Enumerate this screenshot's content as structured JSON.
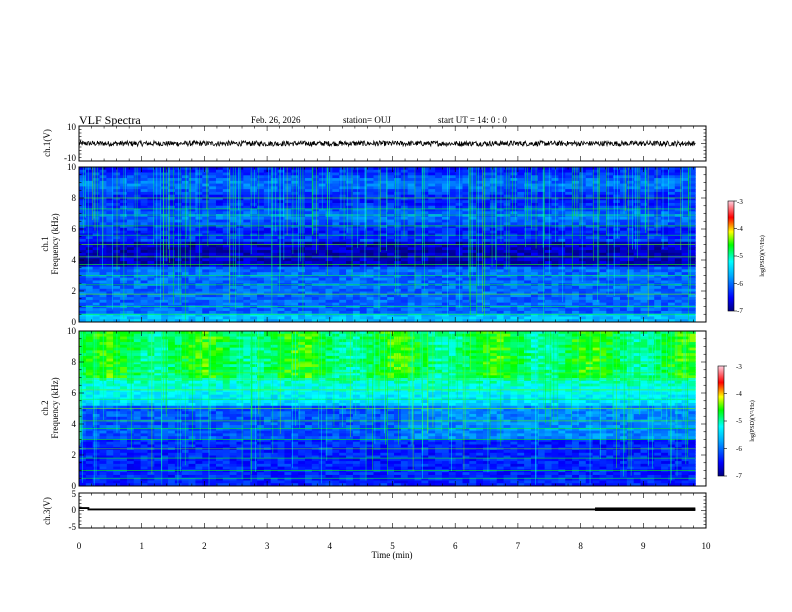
{
  "header": {
    "title": "VLF Spectra",
    "date": "Feb. 26, 2026",
    "station": "station= OUJ",
    "start": "start  UT =   14: 0  : 0"
  },
  "chart_data": [
    {
      "type": "line",
      "panel": "ch1-waveform",
      "ylabel": "ch.1(V)",
      "xlim": [
        0,
        10
      ],
      "ylim": [
        -10,
        10
      ],
      "y_ticks": [
        "10",
        "-10"
      ],
      "series": [
        {
          "x_range": [
            0,
            9.83
          ],
          "approx_level": 0,
          "approx_amplitude": 1.5,
          "color": "#000000"
        }
      ]
    },
    {
      "type": "heatmap",
      "panel": "ch1-spectrogram",
      "ylabel_line1": "ch.1",
      "ylabel_line2": "Frequency (kHz)",
      "xlim": [
        0,
        10
      ],
      "ylim": [
        0,
        10
      ],
      "y_ticks": [
        "0",
        "2",
        "4",
        "6",
        "8",
        "10"
      ],
      "data_x_range": [
        0,
        9.83
      ],
      "colorbar": {
        "label": "log(PSD)(V²/Hz)",
        "range": [
          -7,
          -3
        ],
        "ticks": [
          "-3",
          "-4",
          "-5",
          "-6",
          "-7"
        ]
      }
    },
    {
      "type": "heatmap",
      "panel": "ch2-spectrogram",
      "ylabel_line1": "ch.2",
      "ylabel_line2": "Frequency (kHz)",
      "xlim": [
        0,
        10
      ],
      "ylim": [
        0,
        10
      ],
      "y_ticks": [
        "0",
        "2",
        "4",
        "6",
        "8",
        "10"
      ],
      "data_x_range": [
        0,
        9.83
      ],
      "colorbar": {
        "label": "log(PSD)(V²/Hz)",
        "range": [
          -7,
          -3
        ],
        "ticks": [
          "-3",
          "-4",
          "-5",
          "-6",
          "-7"
        ]
      }
    },
    {
      "type": "line",
      "panel": "ch3-waveform",
      "ylabel": "ch.3(V)",
      "xlabel": "Time  (min)",
      "xlim": [
        0,
        10
      ],
      "ylim": [
        -5,
        5
      ],
      "y_ticks": [
        "5",
        "0",
        "-5"
      ],
      "x_ticks": [
        "0",
        "1",
        "2",
        "3",
        "4",
        "5",
        "6",
        "7",
        "8",
        "9",
        "10"
      ],
      "series": [
        {
          "x_range": [
            0,
            9.83
          ],
          "approx_level": 0.3,
          "color": "#000000"
        }
      ]
    }
  ]
}
